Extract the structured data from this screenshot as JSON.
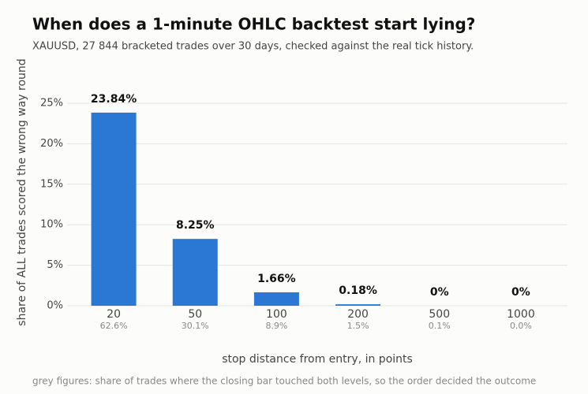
{
  "chart_data": {
    "type": "bar",
    "title": "When does a 1-minute OHLC backtest start lying?",
    "subtitle": "XAUUSD, 27 844 bracketed trades over 30 days, checked against the real tick history.",
    "x_label": "stop distance from entry, in points",
    "y_label": "share of ALL trades scored the wrong way round",
    "footnote": "grey figures: share of trades where the closing bar touched both levels, so the order decided the outcome",
    "categories": [
      "20",
      "50",
      "100",
      "200",
      "500",
      "1000"
    ],
    "category_notes": [
      "62.6%",
      "30.1%",
      "8.9%",
      "1.5%",
      "0.1%",
      "0.0%"
    ],
    "values": [
      23.84,
      8.25,
      1.66,
      0.18,
      0,
      0
    ],
    "value_labels": [
      "23.84%",
      "8.25%",
      "1.66%",
      "0.18%",
      "0%",
      "0%"
    ],
    "color": "#2a77d4",
    "ylim": [
      0,
      25
    ],
    "yticks": [
      {
        "value": 0,
        "label": "0%"
      },
      {
        "value": 5,
        "label": "5%"
      },
      {
        "value": 10,
        "label": "10%"
      },
      {
        "value": 15,
        "label": "15%"
      },
      {
        "value": 20,
        "label": "20%"
      },
      {
        "value": 25,
        "label": "25%"
      }
    ],
    "grid": true
  }
}
